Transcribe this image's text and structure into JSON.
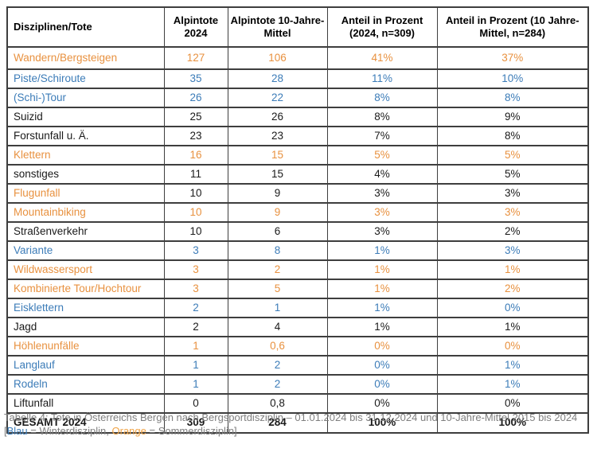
{
  "colors": {
    "orange": "#e8913f",
    "blue": "#3c7cb8",
    "black": "#1a1a1a",
    "border": "#3e3e3e",
    "caption_gray": "#7f7f7f",
    "caption_blue": "#3c7cb8",
    "caption_orange": "#f0a243"
  },
  "table": {
    "headers": [
      {
        "label": "Disziplinen/Tote"
      },
      {
        "label": "Alpintote 2024"
      },
      {
        "label": "Alpintote 10-Jahre-Mittel"
      },
      {
        "label": "Anteil in Prozent (2024, n=309)"
      },
      {
        "label": "Anteil in Prozent (10 Jahre-Mittel, n=284)"
      }
    ],
    "rows": [
      {
        "label": "Wandern/Bergsteigen",
        "cells": [
          "127",
          "106",
          "41%",
          "37%"
        ],
        "label_color": "orange",
        "value_color": "orange",
        "bold": false
      },
      {
        "label": "Piste/Schiroute",
        "cells": [
          "35",
          "28",
          "11%",
          "10%"
        ],
        "label_color": "blue",
        "value_color": "blue",
        "bold": false
      },
      {
        "label": "(Schi-)Tour",
        "cells": [
          "26",
          "22",
          "8%",
          "8%"
        ],
        "label_color": "blue",
        "value_color": "blue",
        "bold": false
      },
      {
        "label": "Suizid",
        "cells": [
          "25",
          "26",
          "8%",
          "9%"
        ],
        "label_color": "black",
        "value_color": "black",
        "bold": false
      },
      {
        "label": "Forstunfall u. Ä.",
        "cells": [
          "23",
          "23",
          "7%",
          "8%"
        ],
        "label_color": "black",
        "value_color": "black",
        "bold": false
      },
      {
        "label": "Klettern",
        "cells": [
          "16",
          "15",
          "5%",
          "5%"
        ],
        "label_color": "orange",
        "value_color": "orange",
        "bold": false
      },
      {
        "label": "sonstiges",
        "cells": [
          "11",
          "15",
          "4%",
          "5%"
        ],
        "label_color": "black",
        "value_color": "black",
        "bold": false
      },
      {
        "label": "Flugunfall",
        "cells": [
          "10",
          "9",
          "3%",
          "3%"
        ],
        "label_color": "orange",
        "value_color": "black",
        "bold": false
      },
      {
        "label": "Mountainbiking",
        "cells": [
          "10",
          "9",
          "3%",
          "3%"
        ],
        "label_color": "orange",
        "value_color": "orange",
        "bold": false
      },
      {
        "label": "Straßenverkehr",
        "cells": [
          "10",
          "6",
          "3%",
          "2%"
        ],
        "label_color": "black",
        "value_color": "black",
        "bold": false
      },
      {
        "label": "Variante",
        "cells": [
          "3",
          "8",
          "1%",
          "3%"
        ],
        "label_color": "blue",
        "value_color": "blue",
        "bold": false
      },
      {
        "label": "Wildwassersport",
        "cells": [
          "3",
          "2",
          "1%",
          "1%"
        ],
        "label_color": "orange",
        "value_color": "orange",
        "bold": false
      },
      {
        "label": "Kombinierte Tour/Hochtour",
        "cells": [
          "3",
          "5",
          "1%",
          "2%"
        ],
        "label_color": "orange",
        "value_color": "orange",
        "bold": false
      },
      {
        "label": "Eisklettern",
        "cells": [
          "2",
          "1",
          "1%",
          "0%"
        ],
        "label_color": "blue",
        "value_color": "blue",
        "bold": false
      },
      {
        "label": "Jagd",
        "cells": [
          "2",
          "4",
          "1%",
          "1%"
        ],
        "label_color": "black",
        "value_color": "black",
        "bold": false
      },
      {
        "label": "Höhlenunfälle",
        "cells": [
          "1",
          "0,6",
          "0%",
          "0%"
        ],
        "label_color": "orange",
        "value_color": "orange",
        "bold": false
      },
      {
        "label": "Langlauf",
        "cells": [
          "1",
          "2",
          "0%",
          "1%"
        ],
        "label_color": "blue",
        "value_color": "blue",
        "bold": false
      },
      {
        "label": "Rodeln",
        "cells": [
          "1",
          "2",
          "0%",
          "1%"
        ],
        "label_color": "blue",
        "value_color": "blue",
        "bold": false
      },
      {
        "label": "Liftunfall",
        "cells": [
          "0",
          "0,8",
          "0%",
          "0%"
        ],
        "label_color": "black",
        "value_color": "black",
        "bold": false
      },
      {
        "label": "GESAMT 2024",
        "cells": [
          "309",
          "284",
          "100%",
          "100%"
        ],
        "label_color": "black",
        "value_color": "black",
        "bold": true
      }
    ]
  },
  "caption": {
    "segments": [
      {
        "text": "Tabelle 4: Tote in Österreichs Bergen nach Bergsportdisziplin – 01.01.2024 bis 31.12.2024 und 10-Jahre-Mittel 2015 bis 2024 [",
        "color": "gray"
      },
      {
        "text": "Blau",
        "color": "blue"
      },
      {
        "text": " = Winterdisziplin, ",
        "color": "gray"
      },
      {
        "text": "Orange",
        "color": "orange"
      },
      {
        "text": " = Sommerdisziplin]",
        "color": "gray"
      }
    ]
  }
}
